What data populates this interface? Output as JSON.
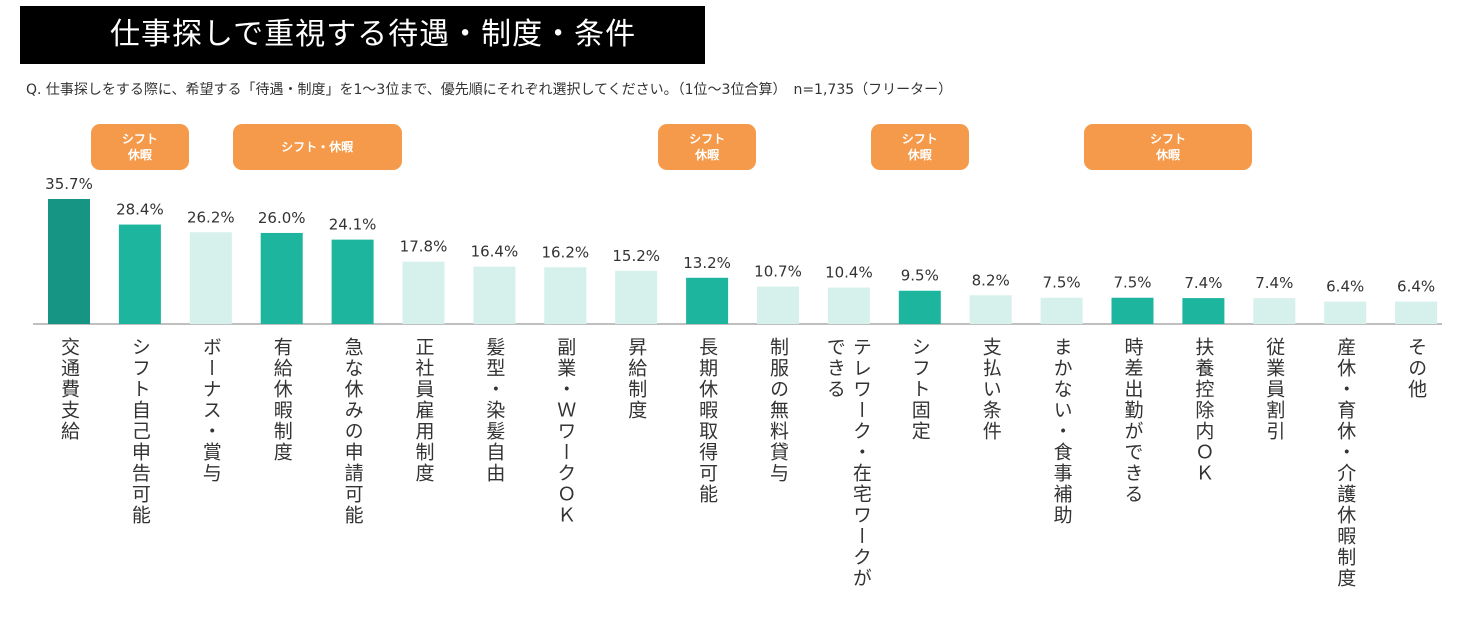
{
  "title": "仕事探しで重視する待遇・制度・条件",
  "question": "Q. 仕事探しをする際に、希望する「待遇・制度」を1～3位まで、優先順にそれぞれ選択してください。（1位～3位合算）　n=1,735（フリーター）",
  "colors": {
    "top": "#169484",
    "highlight": "#1db59e",
    "normal": "#d6f0ec",
    "badge": "#f59a4a",
    "axis": "#aaaaaa"
  },
  "badges": [
    {
      "text": "シフト\n休暇",
      "from": 1,
      "to": 1
    },
    {
      "text": "シフト・休暇",
      "from": 3,
      "to": 4
    },
    {
      "text": "シフト\n休暇",
      "from": 9,
      "to": 9
    },
    {
      "text": "シフト\n休暇",
      "from": 12,
      "to": 12
    },
    {
      "text": "シフト\n休暇",
      "from": 15,
      "to": 16
    }
  ],
  "chart_data": {
    "type": "bar",
    "ylim": [
      0,
      40
    ],
    "categories": [
      "交通費支給",
      "シフト自己申告可能",
      "ボーナス・賞与",
      "有給休暇制度",
      "急な休みの申請可能",
      "正社員雇用制度",
      "髪型・染髪自由",
      "副業・ＷワークＯＫ",
      "昇給制度",
      "長期休暇取得可能",
      "制服の無料貸与",
      "テレワーク・在宅ワークが\nできる",
      "シフト固定",
      "支払い条件",
      "まかない・食事補助",
      "時差出勤ができる",
      "扶養控除内ＯＫ",
      "従業員割引",
      "産休・育休・介護休暇制度",
      "その他"
    ],
    "values": [
      35.7,
      28.4,
      26.2,
      26.0,
      24.1,
      17.8,
      16.4,
      16.2,
      15.2,
      13.2,
      10.7,
      10.4,
      9.5,
      8.2,
      7.5,
      7.5,
      7.4,
      7.4,
      6.4,
      6.4
    ],
    "value_labels": [
      "35.7%",
      "28.4%",
      "26.2%",
      "26.0%",
      "24.1%",
      "17.8%",
      "16.4%",
      "16.2%",
      "15.2%",
      "13.2%",
      "10.7%",
      "10.4%",
      "9.5%",
      "8.2%",
      "7.5%",
      "7.5%",
      "7.4%",
      "7.4%",
      "6.4%",
      "6.4%"
    ],
    "bar_style": [
      "top",
      "highlight",
      "normal",
      "highlight",
      "highlight",
      "normal",
      "normal",
      "normal",
      "normal",
      "highlight",
      "normal",
      "normal",
      "highlight",
      "normal",
      "normal",
      "highlight",
      "highlight",
      "normal",
      "normal",
      "normal"
    ]
  }
}
